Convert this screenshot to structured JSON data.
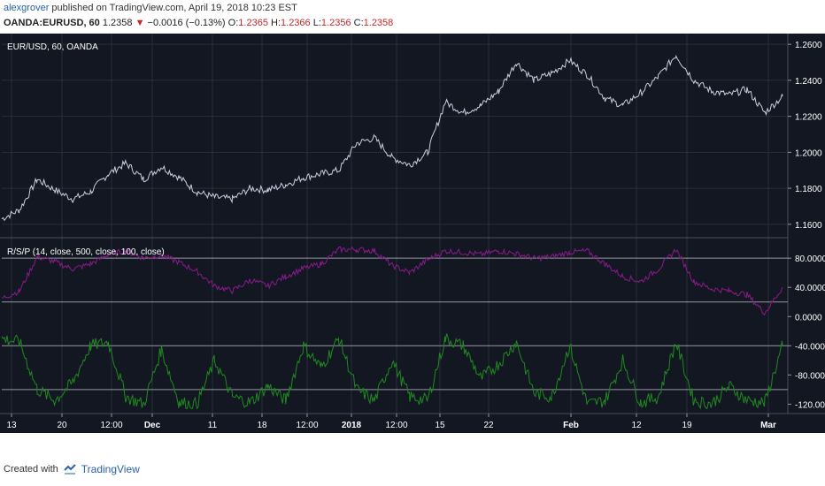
{
  "header": {
    "author": "alexgrover",
    "published": "published on TradingView.com, April 19, 2018 10:23 EST",
    "symbol": "OANDA:EURUSD, 60",
    "last": "1.2358",
    "change": "−0.0016 (−0.13%)",
    "o_label": "O:",
    "o_val": "1.2365",
    "h_label": "H:",
    "h_val": "1.2366",
    "l_label": "L:",
    "l_val": "1.2356",
    "c_label": "C:",
    "c_val": "1.2358"
  },
  "footer": {
    "created_with": "Created with",
    "brand": "TradingView"
  },
  "colors": {
    "bg": "#131722",
    "price": "#c9cfe0",
    "rsp1": "#8a1a8a",
    "rsp2": "#1f8a1f",
    "grid": "#2a2e39",
    "axis_text": "#ffffff",
    "hline": "#9598a1"
  },
  "chart_data": [
    {
      "type": "line",
      "title": "EUR/USD, 60, OANDA",
      "ylim": [
        1.155,
        1.264
      ],
      "yticks": [
        "1.2600",
        "1.2400",
        "1.2200",
        "1.2000",
        "1.1800",
        "1.1600"
      ],
      "ytick_values": [
        1.26,
        1.24,
        1.22,
        1.2,
        1.18,
        1.16
      ],
      "x": [
        0,
        20,
        40,
        60,
        80,
        100,
        120,
        140,
        160,
        180,
        200,
        220,
        240,
        260,
        280,
        300,
        320,
        340,
        360,
        380,
        400,
        420,
        440,
        460,
        480,
        500,
        520,
        540,
        560,
        580,
        600,
        620,
        640,
        660,
        680,
        700,
        720,
        740,
        760,
        780,
        800,
        820,
        840,
        860,
        880
      ],
      "y": [
        1.163,
        1.168,
        1.185,
        1.179,
        1.174,
        1.178,
        1.188,
        1.194,
        1.185,
        1.192,
        1.186,
        1.178,
        1.175,
        1.174,
        1.18,
        1.179,
        1.182,
        1.186,
        1.188,
        1.19,
        1.205,
        1.208,
        1.197,
        1.193,
        1.2,
        1.228,
        1.222,
        1.226,
        1.234,
        1.25,
        1.24,
        1.244,
        1.251,
        1.243,
        1.23,
        1.226,
        1.233,
        1.242,
        1.254,
        1.24,
        1.234,
        1.232,
        1.235,
        1.222,
        1.231
      ]
    },
    {
      "type": "line",
      "title": "R/S/P (14, close, 500, close, 100, close)",
      "ylim": [
        -128,
        102
      ],
      "yticks": [
        "80.0000",
        "40.0000",
        "0.0000",
        "-40.0000",
        "-80.0000",
        "-120.0000"
      ],
      "ytick_values": [
        80,
        40,
        0,
        -40,
        -80,
        -120
      ],
      "hlines": [
        80,
        20,
        -40,
        -100
      ],
      "series": [
        {
          "values_x": [
            0,
            20,
            40,
            60,
            80,
            100,
            120,
            140,
            160,
            180,
            200,
            220,
            240,
            260,
            280,
            300,
            320,
            340,
            360,
            380,
            400,
            420,
            440,
            460,
            480,
            500,
            520,
            540,
            560,
            580,
            600,
            620,
            640,
            660,
            680,
            700,
            720,
            740,
            760,
            780,
            800,
            820,
            840,
            860,
            880
          ],
          "values": [
            25,
            35,
            82,
            75,
            65,
            72,
            85,
            90,
            80,
            84,
            74,
            62,
            42,
            35,
            50,
            42,
            55,
            66,
            72,
            92,
            92,
            90,
            70,
            60,
            78,
            90,
            88,
            85,
            90,
            86,
            80,
            82,
            88,
            90,
            72,
            55,
            48,
            65,
            92,
            48,
            38,
            35,
            30,
            5,
            40
          ]
        },
        {
          "values_x": [
            0,
            20,
            40,
            60,
            80,
            100,
            120,
            140,
            160,
            180,
            200,
            220,
            240,
            260,
            280,
            300,
            320,
            340,
            360,
            380,
            400,
            420,
            440,
            460,
            480,
            500,
            520,
            540,
            560,
            580,
            600,
            620,
            640,
            660,
            680,
            700,
            720,
            740,
            760,
            780,
            800,
            820,
            840,
            860,
            880
          ],
          "values": [
            -30,
            -35,
            -100,
            -115,
            -90,
            -40,
            -35,
            -110,
            -120,
            -45,
            -118,
            -120,
            -60,
            -110,
            -118,
            -95,
            -115,
            -40,
            -70,
            -30,
            -100,
            -115,
            -60,
            -110,
            -115,
            -30,
            -40,
            -85,
            -65,
            -35,
            -105,
            -110,
            -40,
            -120,
            -115,
            -60,
            -118,
            -110,
            -35,
            -115,
            -120,
            -95,
            -115,
            -118,
            -40
          ]
        }
      ]
    }
  ],
  "x_axis": {
    "labels": [
      "13",
      "20",
      "12:00",
      "Dec",
      "11",
      "18",
      "12:00",
      "2018",
      "12:00",
      "15",
      "22",
      "Feb",
      "12",
      "19",
      "Mar"
    ],
    "positions": [
      13,
      70,
      126,
      172,
      240,
      296,
      347,
      397,
      448,
      497,
      552,
      645,
      719,
      776,
      868
    ]
  }
}
